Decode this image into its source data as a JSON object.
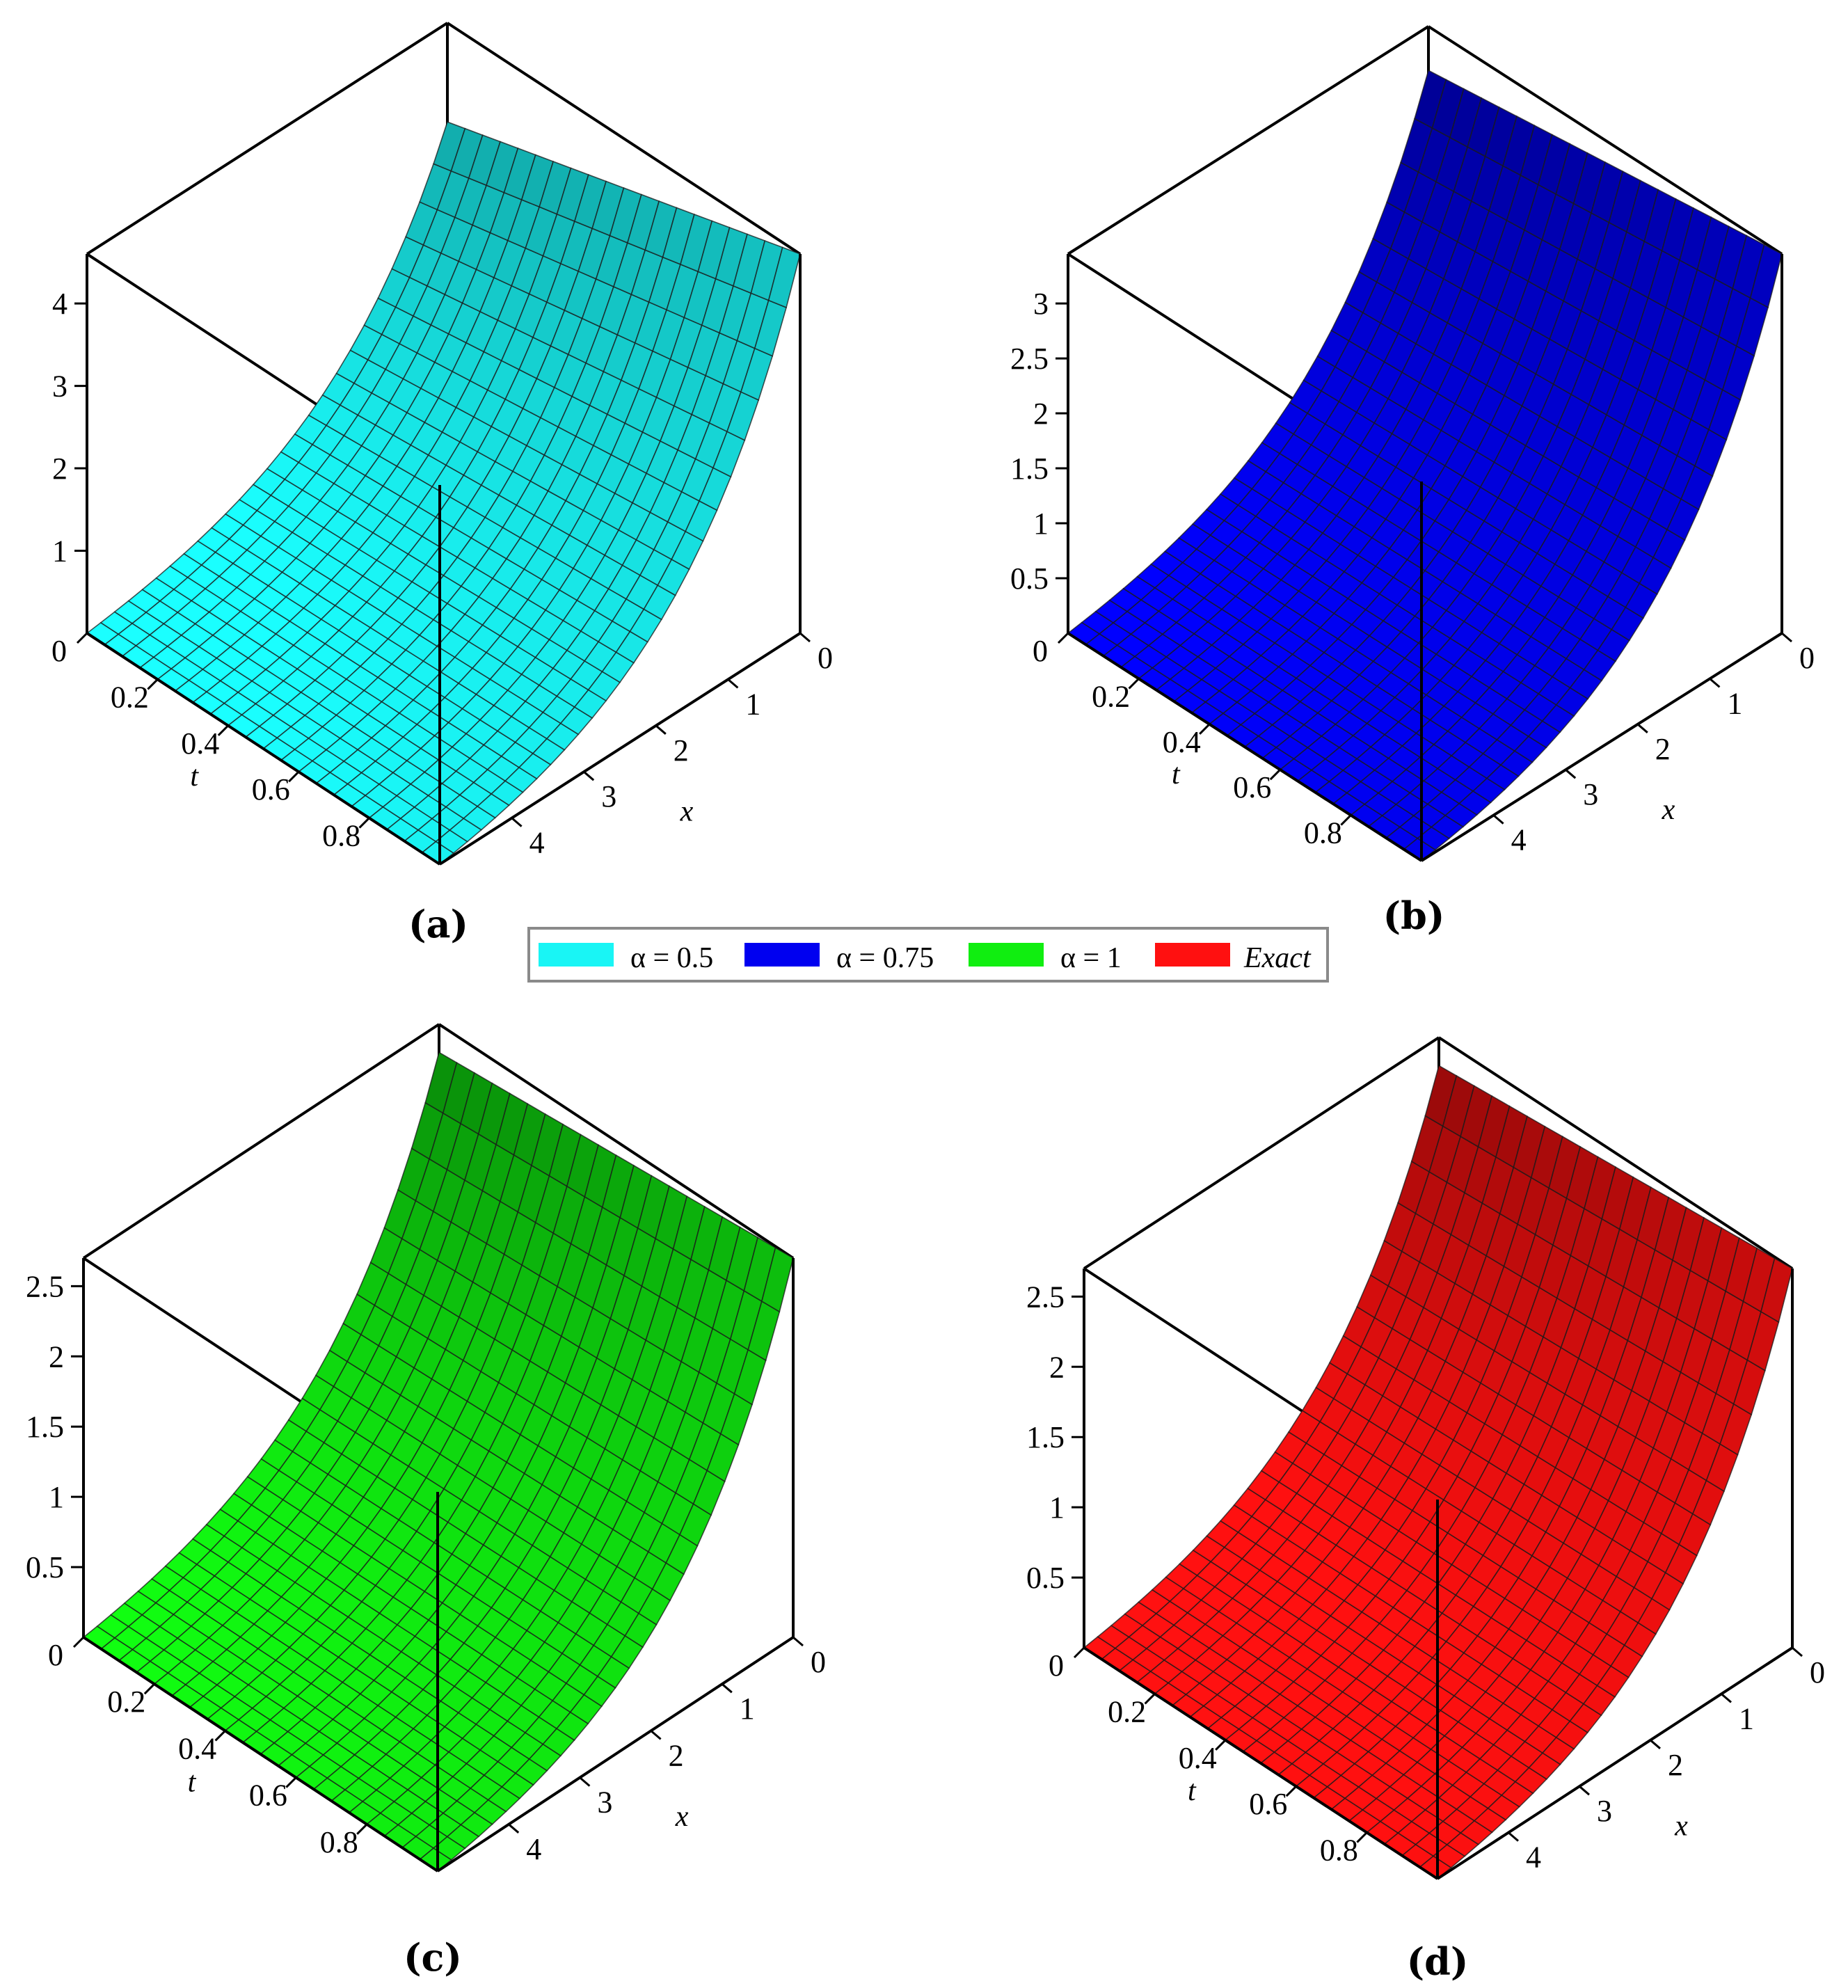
{
  "legend": {
    "items": [
      {
        "label": "α = 0.5",
        "color": "#19f5f5"
      },
      {
        "label": "α = 0.75",
        "color": "#0000f0"
      },
      {
        "label": "α = 1",
        "color": "#10ee10"
      },
      {
        "label": "Exact",
        "color": "#ff1010"
      }
    ]
  },
  "chart_data": [
    {
      "type": "surface",
      "panel_label": "(a)",
      "series_name": "α = 0.5",
      "xlabel": "x",
      "ylabel": "t",
      "x_ticks": [
        "0",
        "1",
        "2",
        "3",
        "4"
      ],
      "t_ticks": [
        "0",
        "0.2",
        "0.4",
        "0.6",
        "0.8"
      ],
      "z_ticks": [
        "1",
        "2",
        "3",
        "4"
      ],
      "z_tick_values": [
        1,
        2,
        3,
        4
      ],
      "xlim": [
        0,
        5
      ],
      "tlim": [
        0,
        1
      ],
      "zlim": [
        0,
        4.6
      ],
      "z_corner_t1_x5": 4.6,
      "z_corner_t0_x5": 3.4,
      "color": "#19f5f5",
      "surface_shape": "z increases exponentially with x and increases with t; z = 0 at x = 0"
    },
    {
      "type": "surface",
      "panel_label": "(b)",
      "series_name": "α = 0.75",
      "xlabel": "x",
      "ylabel": "t",
      "x_ticks": [
        "0",
        "1",
        "2",
        "3",
        "4"
      ],
      "t_ticks": [
        "0",
        "0.2",
        "0.4",
        "0.6",
        "0.8"
      ],
      "z_ticks": [
        "0.5",
        "1",
        "1.5",
        "2",
        "2.5",
        "3"
      ],
      "z_tick_values": [
        0.5,
        1,
        1.5,
        2,
        2.5,
        3
      ],
      "xlim": [
        0,
        5
      ],
      "tlim": [
        0,
        1
      ],
      "zlim": [
        0,
        3.45
      ],
      "z_corner_t1_x5": 3.45,
      "z_corner_t0_x5": 3.05,
      "color": "#0000f0",
      "surface_shape": "z increases exponentially with x and increases with t; z = 0 at x = 0"
    },
    {
      "type": "surface",
      "panel_label": "(c)",
      "series_name": "α = 1",
      "xlabel": "x",
      "ylabel": "t",
      "x_ticks": [
        "0",
        "1",
        "2",
        "3",
        "4"
      ],
      "t_ticks": [
        "0",
        "0.2",
        "0.4",
        "0.6",
        "0.8"
      ],
      "z_ticks": [
        "0.5",
        "1",
        "1.5",
        "2",
        "2.5"
      ],
      "z_tick_values": [
        0.5,
        1,
        1.5,
        2,
        2.5
      ],
      "xlim": [
        0,
        5
      ],
      "tlim": [
        0,
        1
      ],
      "zlim": [
        0,
        2.7
      ],
      "z_corner_t1_x5": 2.7,
      "z_corner_t0_x5": 2.5,
      "color": "#10ee10",
      "surface_shape": "z increases exponentially with x and increases with t; z = 0 at x = 0"
    },
    {
      "type": "surface",
      "panel_label": "(d)",
      "series_name": "Exact",
      "xlabel": "x",
      "ylabel": "t",
      "x_ticks": [
        "0",
        "1",
        "2",
        "3",
        "4"
      ],
      "t_ticks": [
        "0",
        "0.2",
        "0.4",
        "0.6",
        "0.8"
      ],
      "z_ticks": [
        "0.5",
        "1",
        "1.5",
        "2",
        "2.5"
      ],
      "z_tick_values": [
        0.5,
        1,
        1.5,
        2,
        2.5
      ],
      "xlim": [
        0,
        5
      ],
      "tlim": [
        0,
        1
      ],
      "zlim": [
        0,
        2.7
      ],
      "z_corner_t1_x5": 2.7,
      "z_corner_t0_x5": 2.5,
      "color": "#ff1010",
      "surface_shape": "z increases exponentially with x and increases with t; z = 0 at x = 0"
    }
  ]
}
